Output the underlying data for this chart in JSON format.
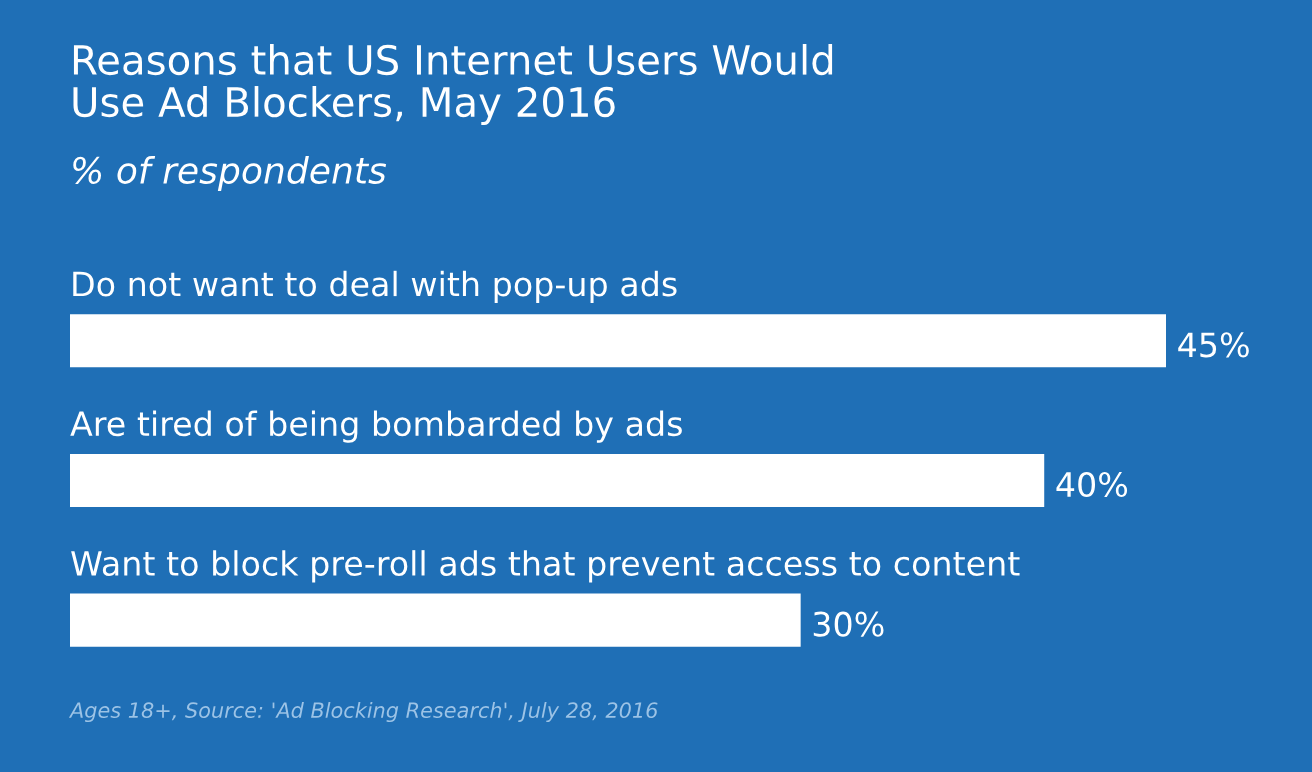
{
  "chart_data": {
    "type": "bar",
    "orientation": "horizontal",
    "title": "Reasons that US Internet Users Would\nUse Ad Blockers, May 2016",
    "subtitle": "% of respondents",
    "categories": [
      "Do not want to deal with pop-up ads",
      "Are tired of being bombarded by ads",
      "Want to block pre-roll ads that prevent access to content"
    ],
    "values": [
      45,
      40,
      30
    ],
    "value_labels": [
      "45%",
      "40%",
      "30%"
    ],
    "color": "#ffffff",
    "annotations": [
      "Ages 18+, Source: 'Ad Blocking Research', July 28, 2016"
    ]
  }
}
